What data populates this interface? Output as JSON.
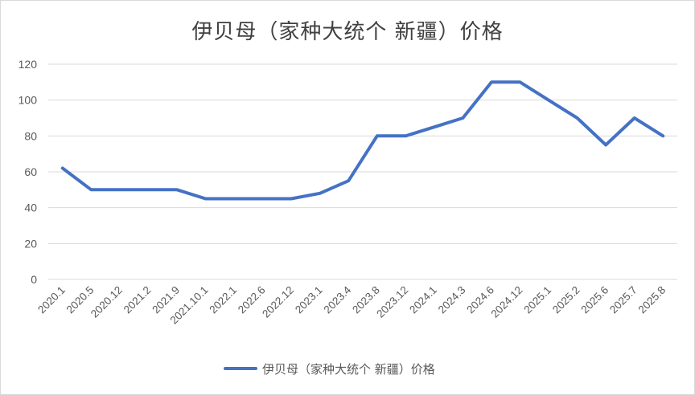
{
  "chart_data": {
    "type": "line",
    "title": "伊贝母（家种大统个 新疆）价格",
    "xlabel": "",
    "ylabel": "",
    "ylim": [
      0,
      120
    ],
    "yticks": [
      0,
      20,
      40,
      60,
      80,
      100,
      120
    ],
    "grid": true,
    "legend_position": "bottom",
    "categories": [
      "2020.1",
      "2020.5",
      "2020.12",
      "2021.2",
      "2021.9",
      "2021.10.1",
      "2022.1",
      "2022.6",
      "2022.12",
      "2023.1",
      "2023.4",
      "2023.8",
      "2023.12",
      "2024.1",
      "2024.3",
      "2024.6",
      "2024.12",
      "2025.1",
      "2025.2",
      "2025.6",
      "2025.7",
      "2025.8"
    ],
    "series": [
      {
        "name": "伊贝母（家种大统个 新疆）价格",
        "color": "#4472c4",
        "values": [
          62,
          50,
          50,
          50,
          50,
          45,
          45,
          45,
          45,
          48,
          55,
          80,
          80,
          85,
          90,
          110,
          110,
          100,
          90,
          75,
          90,
          80
        ]
      }
    ]
  }
}
